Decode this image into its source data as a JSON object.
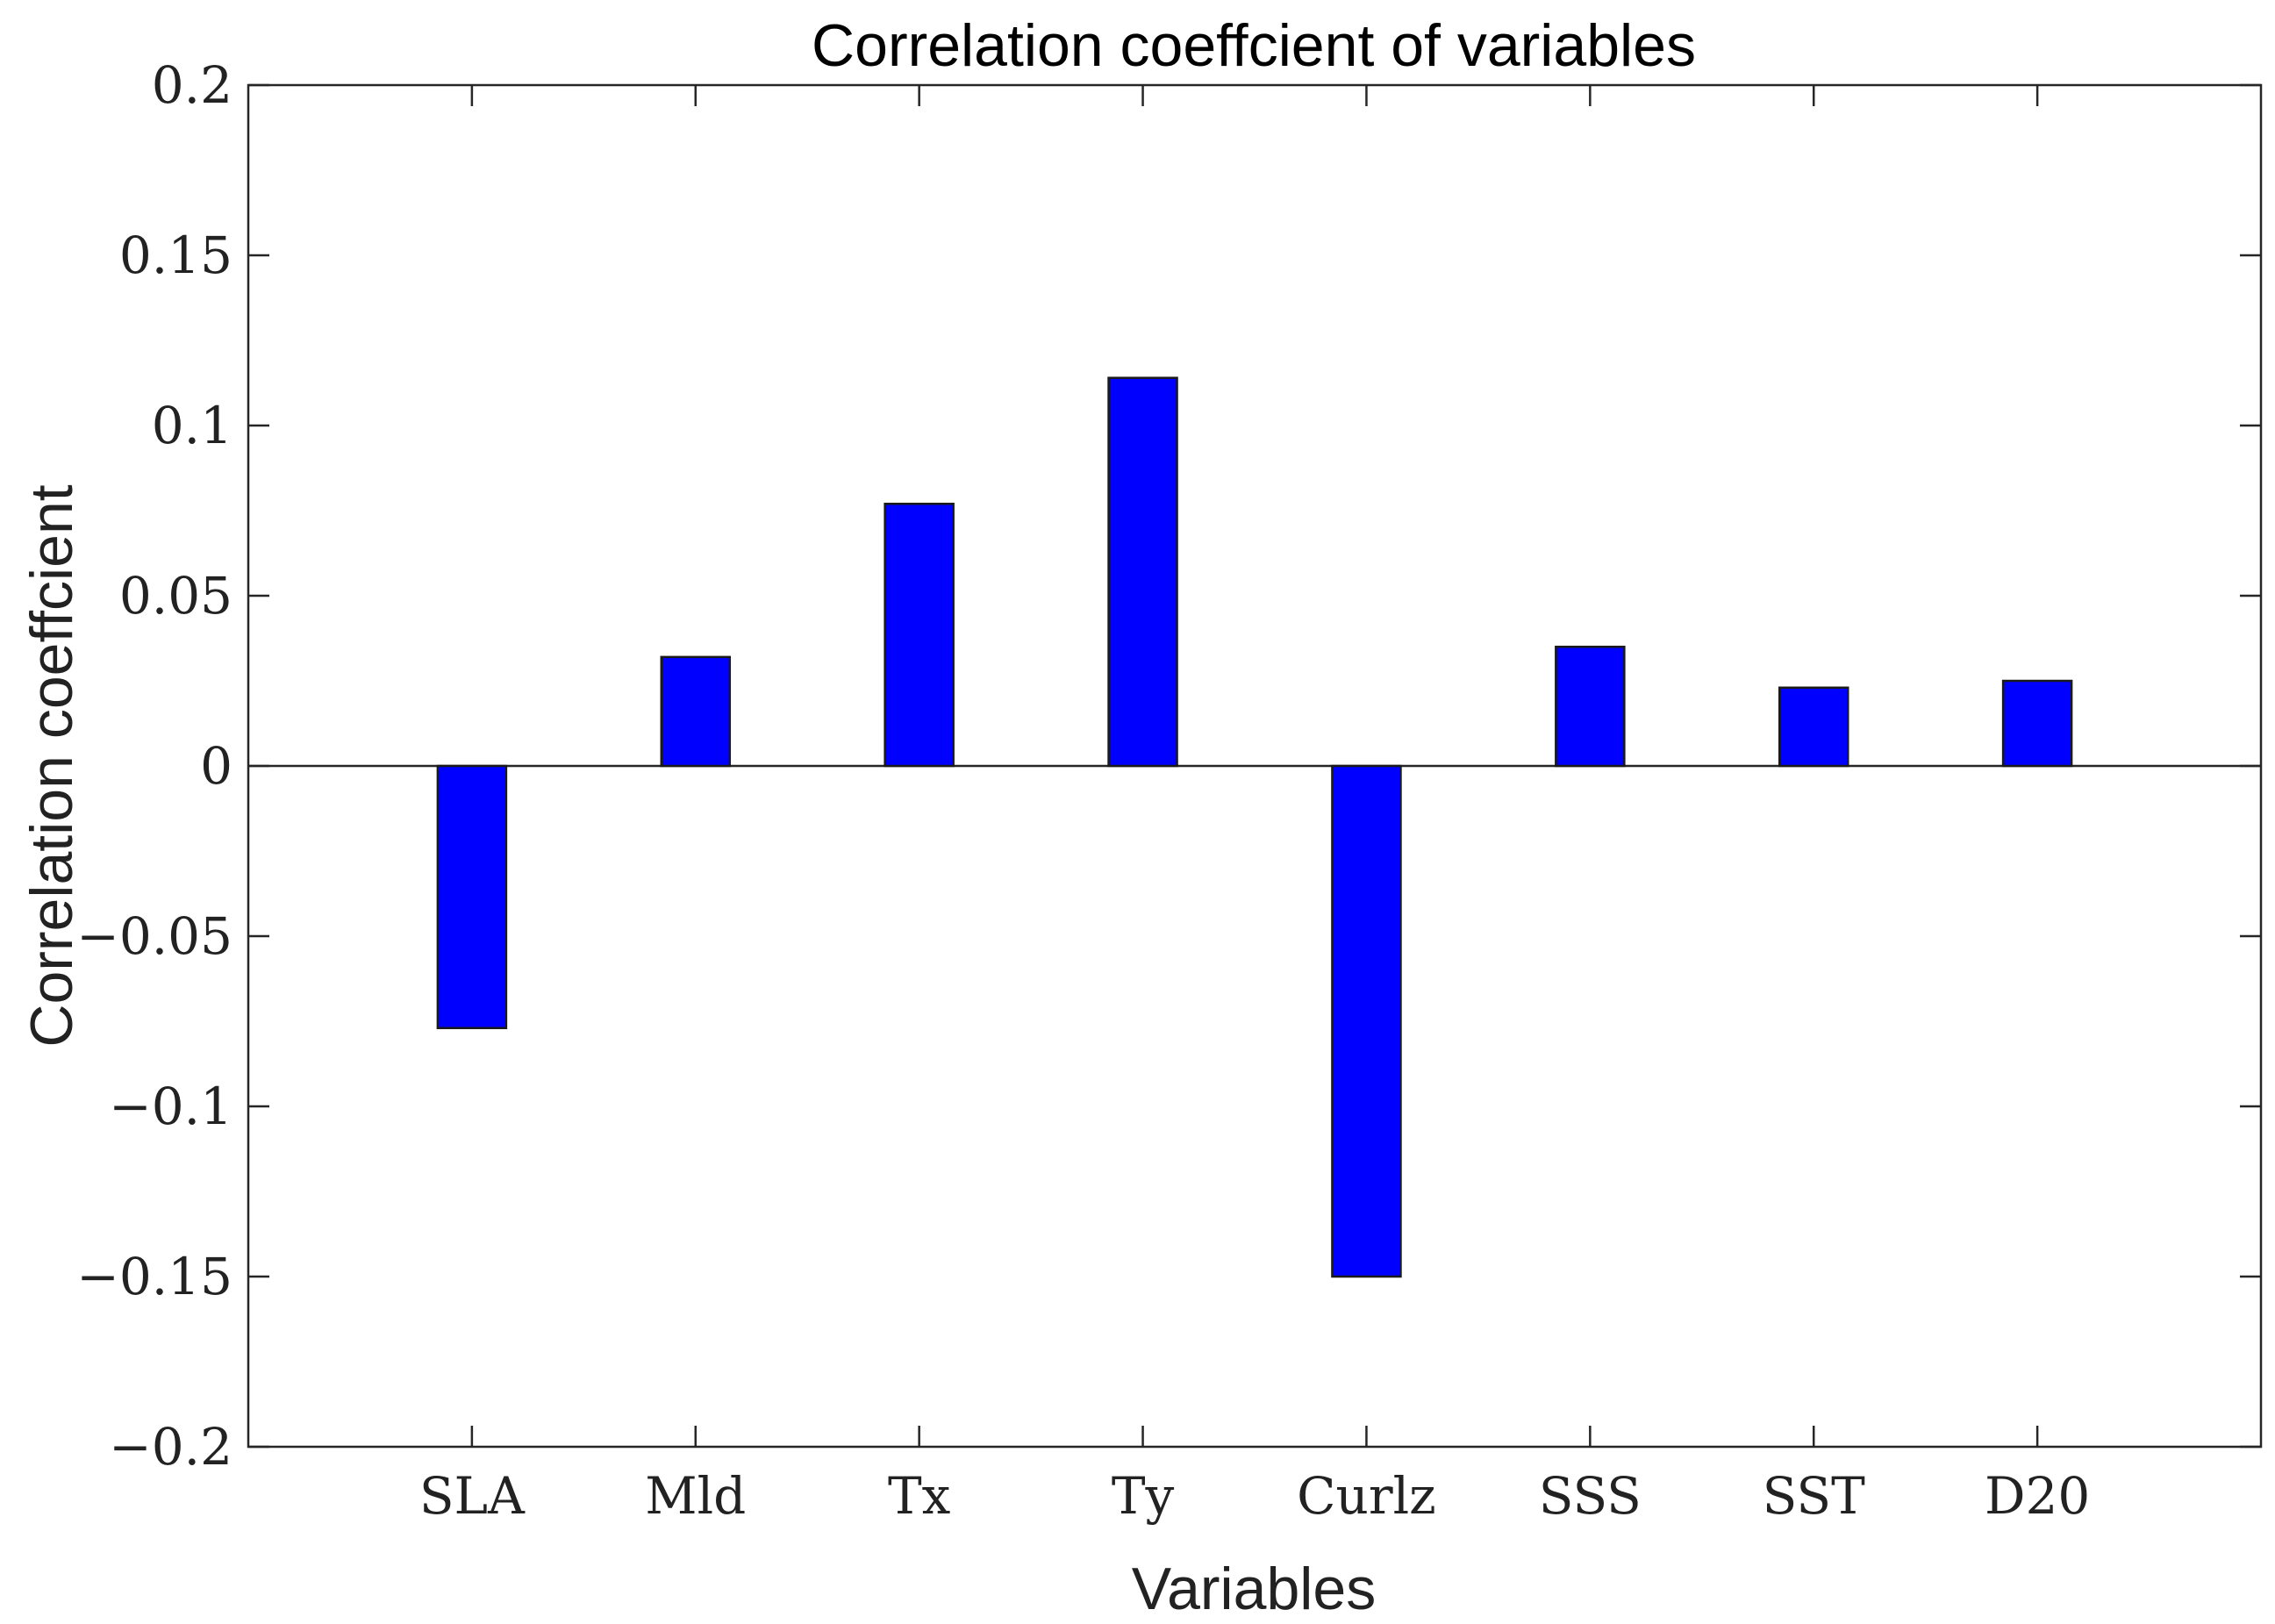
{
  "chart_data": {
    "type": "bar",
    "title": "Correlation coeffcient of variables",
    "xlabel": "Variables",
    "ylabel": "Correlation coeffcient",
    "categories": [
      "SLA",
      "Mld",
      "Tx",
      "Ty",
      "Curlz",
      "SSS",
      "SST",
      "D20"
    ],
    "values": [
      -0.077,
      0.032,
      0.077,
      0.114,
      -0.15,
      0.035,
      0.023,
      0.025
    ],
    "ylim": [
      -0.2,
      0.2
    ],
    "yticks": [
      -0.2,
      -0.15,
      -0.1,
      -0.05,
      0,
      0.05,
      0.1,
      0.15,
      0.2
    ],
    "ytick_labels": [
      "−0.2",
      "−0.15",
      "−0.1",
      "−0.05",
      "0",
      "0.05",
      "0.1",
      "0.15",
      "0.2"
    ],
    "bar_color": "#0000ff",
    "grid": false,
    "legend": null
  }
}
